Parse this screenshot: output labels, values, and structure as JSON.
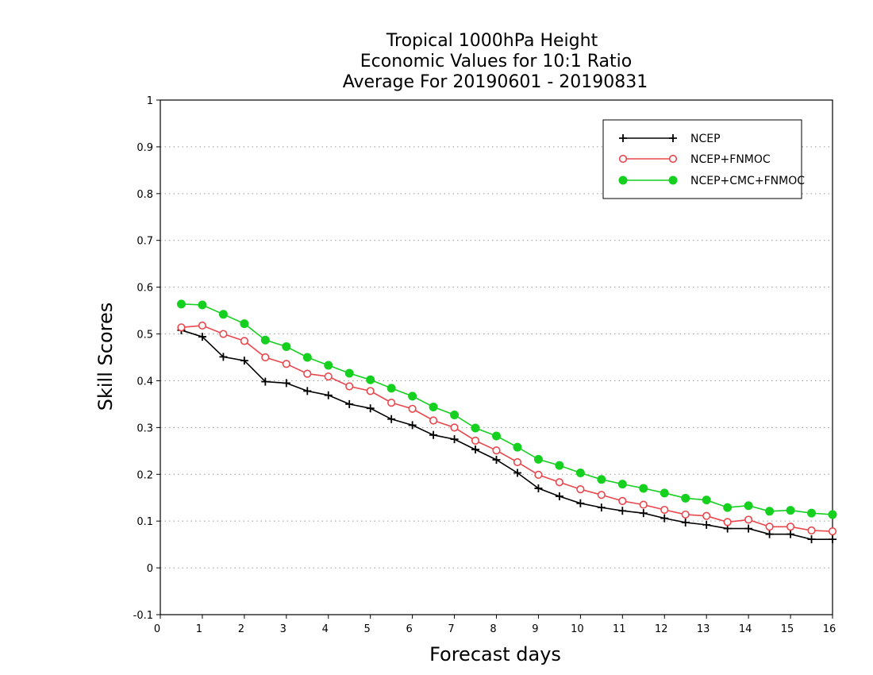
{
  "chart_data": {
    "type": "line",
    "title_lines": [
      "Tropical 1000hPa Height",
      "Economic Values for 10:1 Ratio",
      "Average For 20190601 - 20190831"
    ],
    "xlabel": "Forecast days",
    "ylabel": "Skill Scores",
    "xlim": [
      0,
      16
    ],
    "ylim": [
      -0.1,
      1
    ],
    "xticks": [
      "0",
      "1",
      "2",
      "3",
      "4",
      "5",
      "6",
      "7",
      "8",
      "9",
      "10",
      "11",
      "12",
      "13",
      "14",
      "15",
      "16"
    ],
    "yticks": [
      "-0.1",
      "0",
      "0.1",
      "0.2",
      "0.3",
      "0.4",
      "0.5",
      "0.6",
      "0.7",
      "0.8",
      "0.9",
      "1"
    ],
    "grid": "horizontal dotted",
    "legend_position": "top-right",
    "x": [
      0.5,
      1,
      1.5,
      2,
      2.5,
      3,
      3.5,
      4,
      4.5,
      5,
      5.5,
      6,
      6.5,
      7,
      7.5,
      8,
      8.5,
      9,
      9.5,
      10,
      10.5,
      11,
      11.5,
      12,
      12.5,
      13,
      13.5,
      14,
      14.5,
      15,
      15.5,
      16
    ],
    "series": [
      {
        "name": "NCEP",
        "color": "#000000",
        "marker": "plus",
        "values": [
          0.508,
          0.494,
          0.451,
          0.443,
          0.398,
          0.395,
          0.378,
          0.369,
          0.35,
          0.341,
          0.318,
          0.305,
          0.284,
          0.275,
          0.253,
          0.231,
          0.203,
          0.17,
          0.153,
          0.138,
          0.129,
          0.122,
          0.117,
          0.106,
          0.097,
          0.092,
          0.084,
          0.084,
          0.072,
          0.072,
          0.061,
          0.061
        ]
      },
      {
        "name": "NCEP+FNMOC",
        "color": "#e8474c",
        "marker": "open-circle",
        "values": [
          0.514,
          0.518,
          0.5,
          0.485,
          0.45,
          0.436,
          0.415,
          0.409,
          0.388,
          0.378,
          0.353,
          0.34,
          0.315,
          0.3,
          0.272,
          0.251,
          0.226,
          0.199,
          0.183,
          0.168,
          0.156,
          0.143,
          0.135,
          0.124,
          0.114,
          0.111,
          0.098,
          0.103,
          0.088,
          0.088,
          0.08,
          0.078
        ]
      },
      {
        "name": "NCEP+CMC+FNMOC",
        "color": "#16d020",
        "marker": "filled-circle",
        "values": [
          0.564,
          0.562,
          0.542,
          0.522,
          0.487,
          0.473,
          0.45,
          0.433,
          0.416,
          0.402,
          0.384,
          0.367,
          0.344,
          0.327,
          0.299,
          0.282,
          0.258,
          0.232,
          0.219,
          0.203,
          0.189,
          0.179,
          0.17,
          0.16,
          0.149,
          0.145,
          0.129,
          0.133,
          0.121,
          0.123,
          0.117,
          0.114
        ]
      }
    ]
  }
}
